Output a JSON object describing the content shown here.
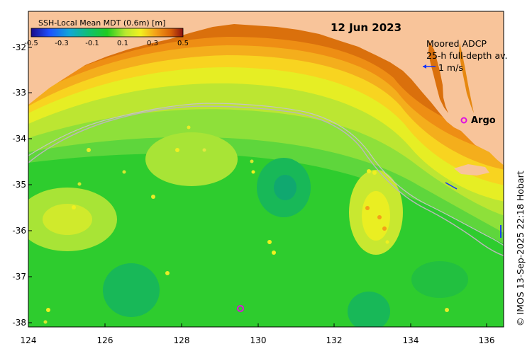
{
  "map": {
    "date": "12 Jun 2023",
    "credit": "© IMOS 13-Sep-2025 22:18 Hobart",
    "colorbar": {
      "title": "SSH-Local Mean MDT (0.6m) [m]",
      "tick_labels": [
        "-0.5",
        "-0.3",
        "-0.1",
        "0.1",
        "0.3",
        "0.5"
      ],
      "range": [
        -0.5,
        0.5
      ]
    },
    "x_axis": {
      "tick_labels": [
        "124",
        "126",
        "128",
        "130",
        "132",
        "134",
        "136"
      ],
      "range": [
        124,
        136.6
      ]
    },
    "y_axis": {
      "tick_labels": [
        "-32",
        "-33",
        "-34",
        "-35",
        "-36",
        "-37",
        "-38"
      ],
      "range": [
        -38.1,
        -31.4
      ]
    },
    "legend": {
      "adcp_line1": "Moored ADCP",
      "adcp_line2": "25-h full-depth av.",
      "adcp_scale": "1 m/s",
      "argo_label": "Argo"
    },
    "colors": {
      "land": "#f8c49a",
      "argo_marker": "#e010e0",
      "adcp_arrow": "#1030ff",
      "isobath": "#b8b8b8"
    }
  }
}
